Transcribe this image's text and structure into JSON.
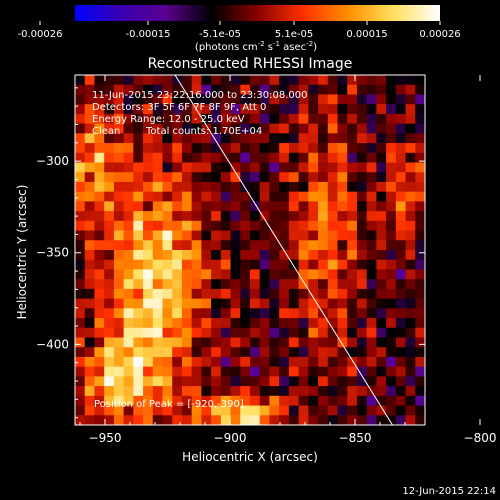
{
  "colorbar": {
    "ticks": [
      "-0.00026",
      "-0.00015",
      "-5.1e-05",
      "5.1e-05",
      "0.00015",
      "0.00026"
    ],
    "units_main": "(photons cm",
    "units_sup1": "-2",
    "units_mid1": " s",
    "units_sup2": "-1",
    "units_mid2": " asec",
    "units_sup3": "-2",
    "units_end": ")",
    "colors": [
      "#0000ff",
      "#3a00b0",
      "#5a0090",
      "#000000",
      "#8a0000",
      "#ff3000",
      "#ff9000",
      "#ffe060",
      "#ffffff"
    ]
  },
  "chart_data": {
    "type": "heatmap",
    "title": "Reconstructed RHESSI Image",
    "xlabel": "Heliocentric X (arcsec)",
    "ylabel": "Heliocentric Y (arcsec)",
    "xlim": [
      -962,
      -822
    ],
    "ylim": [
      -444,
      -253
    ],
    "xticks": [
      -950,
      -900,
      -850,
      -800
    ],
    "yticks": [
      -300,
      -350,
      -400
    ],
    "value_range": [
      -0.00026,
      0.00026
    ],
    "sources": [
      {
        "x": -930,
        "y": -370,
        "sx": 14,
        "sy": 42,
        "amp": 0.00024
      },
      {
        "x": -955,
        "y": -300,
        "sx": 8,
        "sy": 20,
        "amp": 0.00016
      },
      {
        "x": -945,
        "y": -420,
        "sx": 10,
        "sy": 15,
        "amp": 0.00017
      },
      {
        "x": -895,
        "y": -438,
        "sx": 12,
        "sy": 7,
        "amp": 0.00022
      },
      {
        "x": -862,
        "y": -340,
        "sx": 9,
        "sy": 40,
        "amp": 0.00015
      },
      {
        "x": -830,
        "y": -315,
        "sx": 6,
        "sy": 18,
        "amp": 0.00012
      }
    ],
    "limb_line": [
      [
        -922,
        -253
      ],
      [
        -835,
        -444
      ]
    ],
    "peak_label": "Position of Peak = [-920,-390]"
  },
  "header": {
    "time": "11-Jun-2015 23:22:16.000 to 23:30:08.000",
    "detectors": "Detectors: 3F 5F 6F 7F 8F 9F, Att 0",
    "energy": "Energy Range: 12.0 - 25.0 keV",
    "method": "Clean",
    "counts": "Total counts: 1.70E+04"
  },
  "footer": {
    "timestamp": "12-Jun-2015 22:14"
  }
}
